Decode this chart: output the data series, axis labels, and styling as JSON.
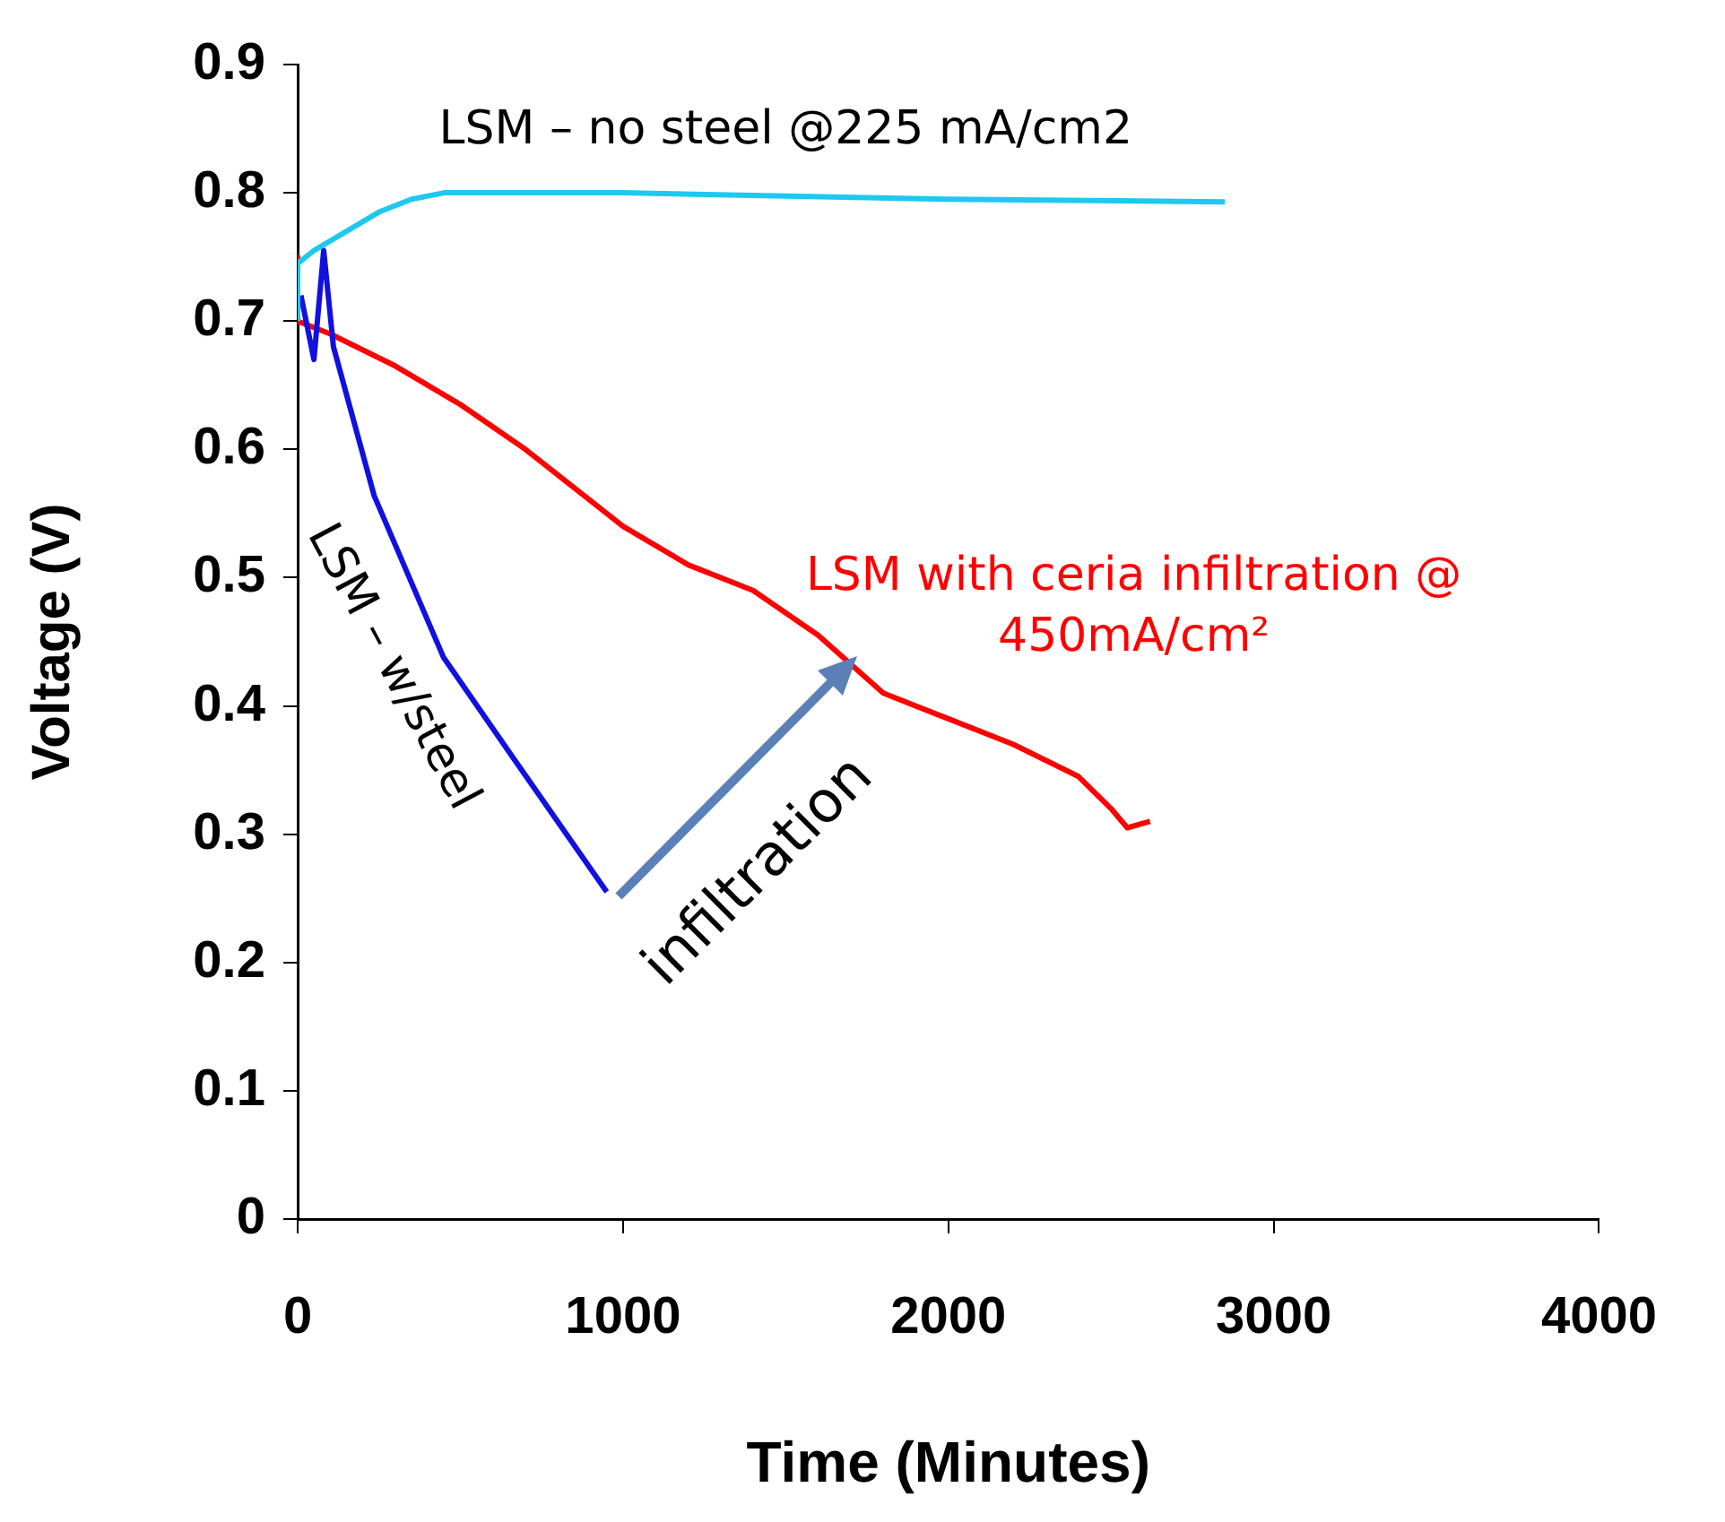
{
  "chart_data": {
    "type": "line",
    "xlabel": "Time (Minutes)",
    "ylabel": "Voltage (V)",
    "xlim": [
      0,
      4000
    ],
    "xticks": [
      0,
      1000,
      2000,
      3000,
      4000
    ],
    "ylim": [
      0,
      0.9
    ],
    "yticks": [
      0,
      0.1,
      0.2,
      0.3,
      0.4,
      0.5,
      0.6,
      0.7,
      0.8,
      0.9
    ],
    "grid": false,
    "legend": false,
    "marker": "none",
    "line_style": "solid",
    "series": [
      {
        "name": "LSM – no steel @225 mA/cm2",
        "color": "#1ec8f0",
        "x": [
          0,
          0,
          50,
          150,
          250,
          350,
          450,
          1000,
          2000,
          2850
        ],
        "values": [
          0.7,
          0.745,
          0.755,
          0.77,
          0.785,
          0.795,
          0.8,
          0.8,
          0.795,
          0.793
        ]
      },
      {
        "name": "LSM – w/steel",
        "color": "#1010e0",
        "x": [
          10,
          50,
          80,
          110,
          235,
          448,
          661,
          950
        ],
        "values": [
          0.72,
          0.67,
          0.755,
          0.68,
          0.564,
          0.438,
          0.36,
          0.255
        ]
      },
      {
        "name": "LSM with ceria infiltration @ 450mA/cm²",
        "color": "#ff0000",
        "x": [
          0,
          0,
          100,
          300,
          500,
          700,
          1000,
          1200,
          1400,
          1600,
          1800,
          2000,
          2200,
          2400,
          2500,
          2550,
          2620
        ],
        "values": [
          0.75,
          0.7,
          0.69,
          0.665,
          0.635,
          0.6,
          0.54,
          0.51,
          0.49,
          0.455,
          0.41,
          0.39,
          0.37,
          0.345,
          0.32,
          0.305,
          0.31
        ]
      }
    ],
    "annotations": [
      "infiltration"
    ]
  }
}
